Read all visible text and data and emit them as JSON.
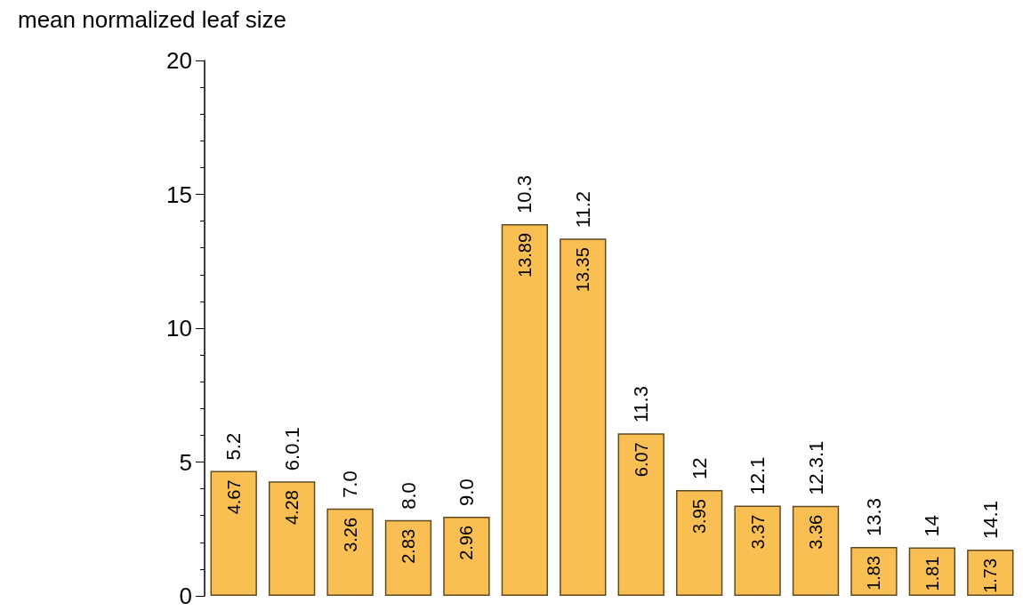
{
  "chart_data": {
    "type": "bar",
    "ylabel": "mean normalized leaf size",
    "categories": [
      "5.2",
      "6.0.1",
      "7.0",
      "8.0",
      "9.0",
      "10.3",
      "11.2",
      "11.3",
      "12",
      "12.1",
      "12.3.1",
      "13.3",
      "14",
      "14.1"
    ],
    "values": [
      4.67,
      4.28,
      3.26,
      2.83,
      2.96,
      13.89,
      13.35,
      6.07,
      3.95,
      3.37,
      3.36,
      1.83,
      1.81,
      1.73
    ],
    "color": "#f9bf52",
    "ylim": [
      0,
      20
    ],
    "yticks": [
      0,
      5,
      10,
      15,
      20
    ],
    "grid": false,
    "data_labels": true
  }
}
